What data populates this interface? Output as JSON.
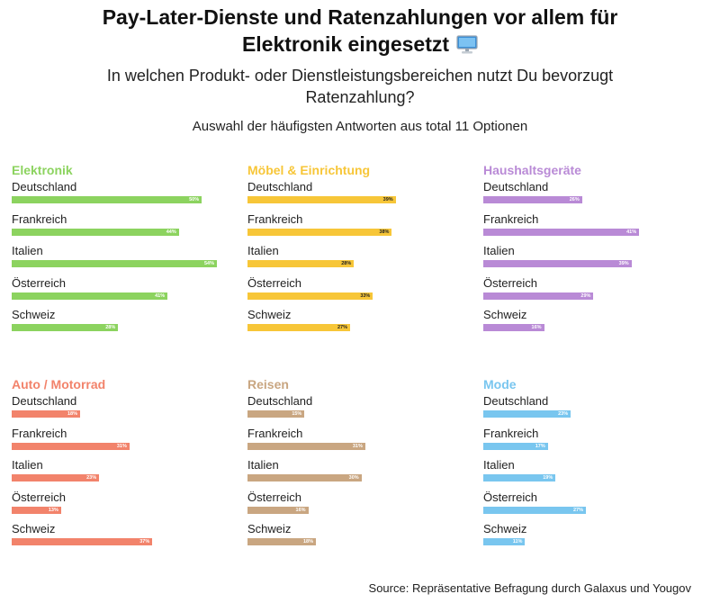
{
  "header": {
    "title": "Pay-Later-Dienste und Ratenzahlungen vor allem für Elektronik eingesetzt",
    "subtitle": "In welchen Produkt- oder Dienstleistungsbereichen nutzt Du bevorzugt Ratenzahlung?",
    "note": "Auswahl der häufigsten Antworten aus total 11 Optionen",
    "title_icon": "desktop-computer-icon"
  },
  "source": "Source: Repräsentative Befragung durch Galaxus und Yougov",
  "chart_data": [
    {
      "type": "bar",
      "title": "Elektronik",
      "color": "#8cd35f",
      "categories": [
        "Deutschland",
        "Frankreich",
        "Italien",
        "Österreich",
        "Schweiz"
      ],
      "values": [
        50,
        44,
        54,
        41,
        28
      ],
      "value_labels": [
        "50%",
        "44%",
        "54%",
        "41%",
        "28%"
      ],
      "xlim": [
        0,
        55
      ]
    },
    {
      "type": "bar",
      "title": "Möbel & Einrichtung",
      "color": "#f7c638",
      "categories": [
        "Deutschland",
        "Frankreich",
        "Italien",
        "Österreich",
        "Schweiz"
      ],
      "values": [
        39,
        38,
        28,
        33,
        27
      ],
      "value_labels": [
        "39%",
        "38%",
        "28%",
        "33%",
        "27%"
      ],
      "xlim": [
        0,
        55
      ]
    },
    {
      "type": "bar",
      "title": "Haushaltsgeräte",
      "color": "#b98ad6",
      "categories": [
        "Deutschland",
        "Frankreich",
        "Italien",
        "Österreich",
        "Schweiz"
      ],
      "values": [
        26,
        41,
        39,
        29,
        16
      ],
      "value_labels": [
        "26%",
        "41%",
        "39%",
        "29%",
        "16%"
      ],
      "xlim": [
        0,
        55
      ]
    },
    {
      "type": "bar",
      "title": "Auto / Motorrad",
      "color": "#f2836b",
      "categories": [
        "Deutschland",
        "Frankreich",
        "Italien",
        "Österreich",
        "Schweiz"
      ],
      "values": [
        18,
        31,
        23,
        13,
        37
      ],
      "value_labels": [
        "18%",
        "31%",
        "23%",
        "13%",
        "37%"
      ],
      "xlim": [
        0,
        55
      ]
    },
    {
      "type": "bar",
      "title": "Reisen",
      "color": "#c9a681",
      "categories": [
        "Deutschland",
        "Frankreich",
        "Italien",
        "Österreich",
        "Schweiz"
      ],
      "values": [
        15,
        31,
        30,
        16,
        18
      ],
      "value_labels": [
        "15%",
        "31%",
        "30%",
        "16%",
        "18%"
      ],
      "xlim": [
        0,
        55
      ]
    },
    {
      "type": "bar",
      "title": "Mode",
      "color": "#79c6ef",
      "categories": [
        "Deutschland",
        "Frankreich",
        "Italien",
        "Österreich",
        "Schweiz"
      ],
      "values": [
        23,
        17,
        19,
        27,
        11
      ],
      "value_labels": [
        "23%",
        "17%",
        "19%",
        "27%",
        "11%"
      ],
      "xlim": [
        0,
        55
      ]
    }
  ]
}
